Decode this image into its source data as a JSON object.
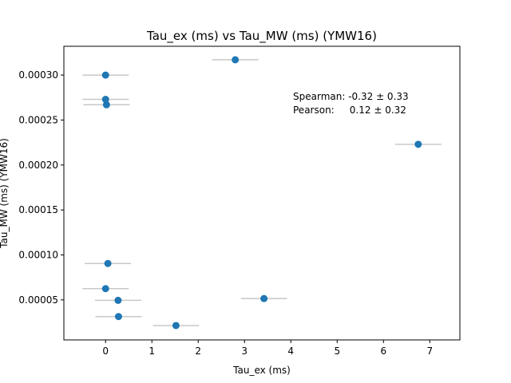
{
  "chart_data": {
    "type": "scatter",
    "title": "Tau_ex (ms) vs Tau_MW (ms) (YMW16)",
    "xlabel": "Tau_ex (ms)",
    "ylabel": "Tau_MW (ms) (YMW16)",
    "xlim": [
      -0.9,
      7.65
    ],
    "ylim": [
      5.5e-06,
      0.000332
    ],
    "xticks": [
      0,
      1,
      2,
      3,
      4,
      5,
      6,
      7
    ],
    "xtick_labels": [
      "0",
      "1",
      "2",
      "3",
      "4",
      "5",
      "6",
      "7"
    ],
    "yticks": [
      5e-05,
      0.0001,
      0.00015,
      0.0002,
      0.00025,
      0.0003
    ],
    "ytick_labels": [
      "0.00005",
      "0.00010",
      "0.00015",
      "0.00020",
      "0.00025",
      "0.00030"
    ],
    "grid": false,
    "marker_color": "#1f77b4",
    "errorbar_color": "#c8c8c8",
    "points": [
      {
        "x": 2.8,
        "y": 0.000317,
        "xerr": 0.5
      },
      {
        "x": 0.0,
        "y": 0.0003,
        "xerr": 0.5
      },
      {
        "x": 0.0,
        "y": 0.000273,
        "xerr": 0.5
      },
      {
        "x": 0.02,
        "y": 0.000267,
        "xerr": 0.5
      },
      {
        "x": 6.75,
        "y": 0.000223,
        "xerr": 0.5
      },
      {
        "x": 0.05,
        "y": 9.05e-05,
        "xerr": 0.5
      },
      {
        "x": 0.0,
        "y": 6.25e-05,
        "xerr": 0.5
      },
      {
        "x": 0.27,
        "y": 4.95e-05,
        "xerr": 0.5
      },
      {
        "x": 3.42,
        "y": 5.15e-05,
        "xerr": 0.5
      },
      {
        "x": 0.28,
        "y": 3.15e-05,
        "xerr": 0.5
      },
      {
        "x": 1.52,
        "y": 2.15e-05,
        "xerr": 0.5
      }
    ],
    "annotations": [
      "Spearman: -0.32 ± 0.33",
      "Pearson:     0.12 ± 0.32"
    ]
  }
}
